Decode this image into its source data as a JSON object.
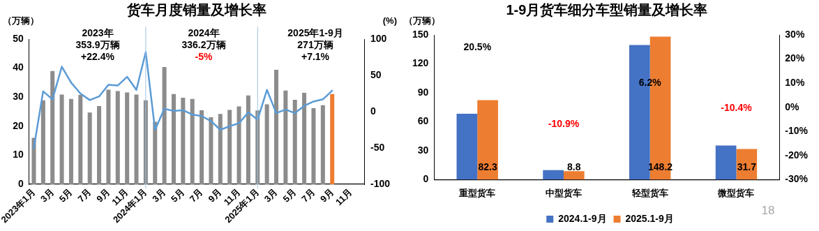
{
  "chart_data": [
    {
      "type": "bar",
      "title": "货车月度销量及增长率",
      "ylabel": "（万辆）",
      "y2label": "(%)",
      "categories": [
        "2023年1月",
        null,
        "3月",
        null,
        "5月",
        null,
        "7月",
        null,
        "9月",
        null,
        "11月",
        null,
        "2024年1月",
        null,
        "3月",
        null,
        "5月",
        null,
        "7月",
        null,
        "9月",
        null,
        "11月",
        null,
        "2025年1月",
        null,
        "3月",
        null,
        "5月",
        null,
        "7月",
        null,
        "9月",
        null,
        "11月",
        null
      ],
      "series": [
        {
          "colors": [
            "#8c8c8c",
            "#8c8c8c",
            "#8c8c8c",
            "#8c8c8c",
            "#8c8c8c",
            "#8c8c8c",
            "#8c8c8c",
            "#8c8c8c",
            "#8c8c8c",
            "#8c8c8c",
            "#8c8c8c",
            "#8c8c8c",
            "#8c8c8c",
            "#8c8c8c",
            "#8c8c8c",
            "#8c8c8c",
            "#8c8c8c",
            "#8c8c8c",
            "#8c8c8c",
            "#8c8c8c",
            "#8c8c8c",
            "#8c8c8c",
            "#8c8c8c",
            "#8c8c8c",
            "#8c8c8c",
            "#8c8c8c",
            "#8c8c8c",
            "#8c8c8c",
            "#8c8c8c",
            "#8c8c8c",
            "#8c8c8c",
            "#8c8c8c",
            "#ed7d31",
            "#8c8c8c",
            "#8c8c8c",
            "#8c8c8c"
          ],
          "values": [
            16,
            28.9,
            39,
            30.9,
            29.4,
            30.8,
            24.7,
            26.9,
            32.6,
            32.1,
            31.6,
            30.9,
            28.9,
            21.5,
            40.4,
            31.1,
            29.8,
            29.4,
            25.5,
            23.1,
            24.2,
            25.6,
            26.8,
            30.6,
            25.4,
            27.5,
            39.4,
            32.3,
            29.1,
            31.5,
            26.2,
            27.2,
            31.1,
            null,
            null,
            null
          ]
        },
        {
          "type": "line",
          "axis": "y2",
          "color": "#5b9bd5",
          "values": [
            -50,
            28,
            17,
            62,
            40,
            25,
            16,
            21,
            37,
            36,
            48,
            30,
            82,
            -25,
            4,
            1,
            2,
            -4,
            -6,
            -13,
            -25,
            -20,
            -16,
            -1,
            -11,
            30,
            -2,
            3,
            -2,
            8,
            14,
            17,
            29,
            null,
            null,
            null
          ]
        }
      ],
      "ylim": [
        0,
        50
      ],
      "yticks": [
        0,
        10,
        20,
        30,
        40,
        50
      ],
      "y2lim": [
        -100,
        100
      ],
      "y2ticks": [
        -100,
        -50,
        0,
        50,
        100
      ],
      "marker": "none",
      "line_style": "solid",
      "grid": false,
      "legend": false,
      "ref_lines": [
        {
          "axis": "x",
          "value": "2024年1月",
          "color": "#9dc3e6"
        },
        {
          "axis": "x",
          "value": "2025年1月",
          "color": "#9dc3e6"
        }
      ],
      "annotations": [
        "2023年",
        "353.9万辆",
        "+22.4%",
        "2024年",
        "336.2万辆",
        "-5%",
        "2025年1-9月",
        "271万辆",
        "+7.1%"
      ]
    },
    {
      "type": "bar",
      "title": "1-9月货车细分车型销量及增长率",
      "ylabel": "（万辆）",
      "categories": [
        "重型货车",
        "中型货车",
        "轻型货车",
        "微型货车"
      ],
      "series": [
        {
          "name": "2024.1-9月",
          "color": "#4472c4",
          "values": [
            68.3,
            9.9,
            139.5,
            35.4
          ]
        },
        {
          "name": "2025.1-9月",
          "color": "#ed7d31",
          "values": [
            82.3,
            8.8,
            148.2,
            31.7
          ],
          "value_labels": [
            "82.3",
            "8.8",
            "148.2",
            "31.7"
          ]
        }
      ],
      "ylim": [
        0,
        150
      ],
      "yticks": [
        0,
        30,
        60,
        90,
        120,
        150
      ],
      "y2lim": [
        -30,
        30
      ],
      "y2ticks": [
        {
          "value": -30,
          "label": "-30%"
        },
        {
          "value": -20,
          "label": "-20%"
        },
        {
          "value": -10,
          "label": "-10%"
        },
        {
          "value": 0,
          "label": "0%"
        },
        {
          "value": 10,
          "label": "10%"
        },
        {
          "value": 20,
          "label": "20%"
        },
        {
          "value": 30,
          "label": "30%"
        }
      ],
      "grid": false,
      "legend": "bottom",
      "annotations": [
        "20.5%",
        "-10.9%",
        "6.2%",
        "-10.4%",
        "18"
      ]
    }
  ]
}
